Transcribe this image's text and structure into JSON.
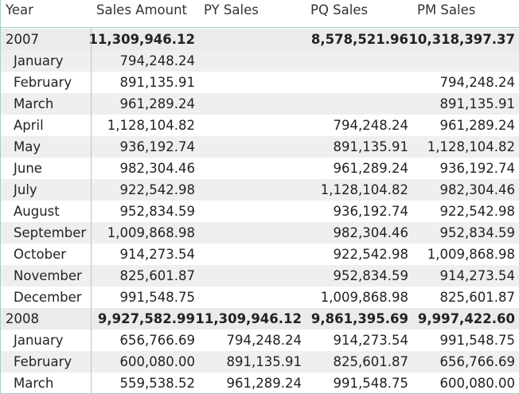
{
  "headers": {
    "year": "Year",
    "sales_amount": "Sales Amount",
    "py_sales": "PY Sales",
    "pq_sales": "PQ Sales",
    "pm_sales": "PM Sales"
  },
  "rows": [
    {
      "label": "2007",
      "sales": "11,309,946.12",
      "py": "",
      "pq": "8,578,521.96",
      "pm": "10,318,397.37"
    },
    {
      "label": "January",
      "sales": "794,248.24",
      "py": "",
      "pq": "",
      "pm": ""
    },
    {
      "label": "February",
      "sales": "891,135.91",
      "py": "",
      "pq": "",
      "pm": "794,248.24"
    },
    {
      "label": "March",
      "sales": "961,289.24",
      "py": "",
      "pq": "",
      "pm": "891,135.91"
    },
    {
      "label": "April",
      "sales": "1,128,104.82",
      "py": "",
      "pq": "794,248.24",
      "pm": "961,289.24"
    },
    {
      "label": "May",
      "sales": "936,192.74",
      "py": "",
      "pq": "891,135.91",
      "pm": "1,128,104.82"
    },
    {
      "label": "June",
      "sales": "982,304.46",
      "py": "",
      "pq": "961,289.24",
      "pm": "936,192.74"
    },
    {
      "label": "July",
      "sales": "922,542.98",
      "py": "",
      "pq": "1,128,104.82",
      "pm": "982,304.46"
    },
    {
      "label": "August",
      "sales": "952,834.59",
      "py": "",
      "pq": "936,192.74",
      "pm": "922,542.98"
    },
    {
      "label": "September",
      "sales": "1,009,868.98",
      "py": "",
      "pq": "982,304.46",
      "pm": "952,834.59"
    },
    {
      "label": "October",
      "sales": "914,273.54",
      "py": "",
      "pq": "922,542.98",
      "pm": "1,009,868.98"
    },
    {
      "label": "November",
      "sales": "825,601.87",
      "py": "",
      "pq": "952,834.59",
      "pm": "914,273.54"
    },
    {
      "label": "December",
      "sales": "991,548.75",
      "py": "",
      "pq": "1,009,868.98",
      "pm": "825,601.87"
    },
    {
      "label": "2008",
      "sales": "9,927,582.99",
      "py": "11,309,946.12",
      "pq": "9,861,395.69",
      "pm": "9,997,422.60"
    },
    {
      "label": "January",
      "sales": "656,766.69",
      "py": "794,248.24",
      "pq": "914,273.54",
      "pm": "991,548.75"
    },
    {
      "label": "February",
      "sales": "600,080.00",
      "py": "891,135.91",
      "pq": "825,601.87",
      "pm": "656,766.69"
    },
    {
      "label": "March",
      "sales": "559,538.52",
      "py": "961,289.24",
      "pq": "991,548.75",
      "pm": "600,080.00"
    }
  ]
}
